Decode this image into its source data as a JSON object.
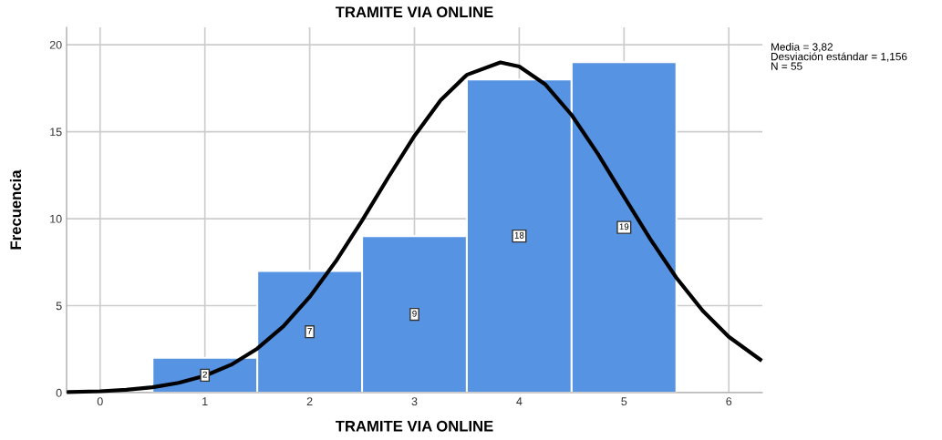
{
  "chart_data": {
    "type": "histogram",
    "title": "TRAMITE VIA ONLINE",
    "xlabel": "TRAMITE VIA ONLINE",
    "ylabel": "Frecuencia",
    "bins": [
      0.5,
      1.5,
      2.5,
      3.5,
      4.5,
      5.5
    ],
    "series": [
      {
        "color": "#5694e3",
        "values": [
          2,
          7,
          9,
          18,
          19
        ],
        "value_labels": [
          "2",
          "7",
          "9",
          "18",
          "19"
        ]
      },
      {
        "type": "line",
        "color": "#000000",
        "x": [
          -0.3,
          0,
          0.25,
          0.5,
          0.75,
          1,
          1.25,
          1.5,
          1.75,
          2,
          2.25,
          2.5,
          2.75,
          3,
          3.25,
          3.5,
          3.82,
          4,
          4.25,
          4.5,
          4.75,
          5,
          5.25,
          5.5,
          5.75,
          6,
          6.3
        ],
        "values": [
          0.03,
          0.08,
          0.16,
          0.31,
          0.56,
          0.97,
          1.6,
          2.53,
          3.82,
          5.5,
          7.55,
          9.89,
          12.37,
          14.76,
          16.81,
          18.27,
          18.98,
          18.75,
          17.71,
          15.96,
          13.73,
          11.27,
          8.83,
          6.6,
          4.71,
          3.21,
          1.9
        ]
      }
    ],
    "xlim": [
      -0.32,
      6.32
    ],
    "ylim": [
      0,
      21
    ],
    "xticks": [
      0,
      1,
      2,
      3,
      4,
      5,
      6
    ],
    "yticks": [
      0,
      5,
      10,
      15,
      20
    ],
    "grid": true,
    "marker": "none",
    "line_style": "solid",
    "annotations": [
      "Media = 3,82\nDesviación estándar = 1,156\nN = 55"
    ]
  }
}
